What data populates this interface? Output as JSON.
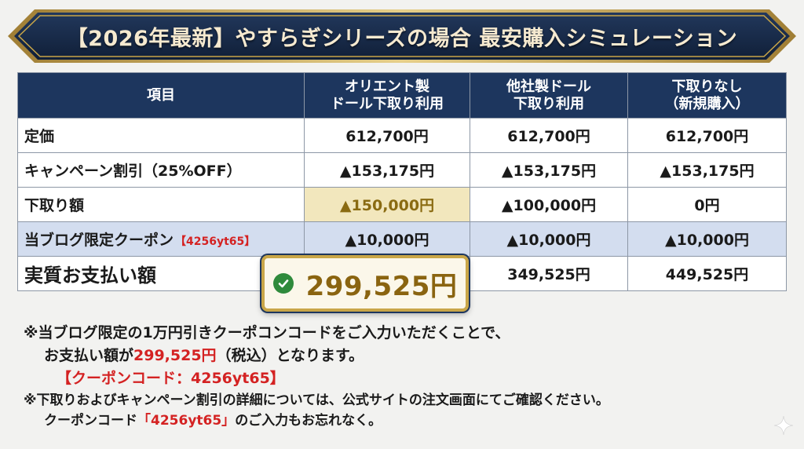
{
  "banner": {
    "title": "【2026年最新】やすらぎシリーズの場合 最安購入シミュレーション"
  },
  "table": {
    "headers": {
      "item": "項目",
      "col1": "オリエント製\nドール下取り利用",
      "col2": "他社製ドール\n下取り利用",
      "col3": "下取りなし\n（新規購入）"
    },
    "rows": {
      "list_price": {
        "label": "定価",
        "values": [
          "612,700円",
          "612,700円",
          "612,700円"
        ]
      },
      "campaign": {
        "label": "キャンペーン割引（25%OFF）",
        "values": [
          "▲153,175円",
          "▲153,175円",
          "▲153,175円"
        ]
      },
      "tradein": {
        "label": "下取り額",
        "values": [
          "▲150,000円",
          "▲100,000円",
          "0円"
        ]
      },
      "coupon": {
        "label": "当ブログ限定クーポン",
        "code": "【4256yt65】",
        "values": [
          "▲10,000円",
          "▲10,000円",
          "▲10,000円"
        ]
      },
      "total": {
        "label": "実質お支払い額",
        "values": [
          "299,525円",
          "349,525円",
          "449,525円"
        ]
      }
    }
  },
  "notes": {
    "line1": "※当ブログ限定の1万円引きクーポコンコードをご入力いただくことで、",
    "line2_pre": "お支払い額が",
    "line2_amount": "299,525円",
    "line2_post": "（税込）となります。",
    "coupon_line": "【クーポンコード：4256yt65】",
    "line3": "※下取りおよびキャンペーン割引の詳細については、公式サイトの注文画面にてご確認ください。",
    "line4_pre": "クーポンコード",
    "line4_code": "「4256yt65」",
    "line4_post": "のご入力もお忘れなく。"
  },
  "colors": {
    "header_navy": "#1d365e",
    "gold": "#c9a648",
    "red": "#d42222",
    "coupon_row": "#d3ddef",
    "tradein_highlight": "#f2e7bd"
  },
  "icons": {
    "check": "check-circle-icon",
    "sparkle": "sparkle-icon"
  }
}
